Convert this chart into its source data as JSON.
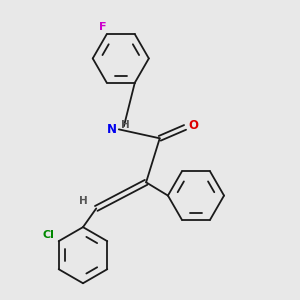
{
  "background_color": "#e8e8e8",
  "bond_color": "#1a1a1a",
  "atom_colors": {
    "F": "#cc00cc",
    "N": "#0000ee",
    "O": "#dd0000",
    "Cl": "#008800",
    "H": "#555555",
    "C": "#1a1a1a"
  },
  "figsize": [
    3.0,
    3.0
  ],
  "dpi": 100,
  "lw": 1.3,
  "ring_r": 0.72,
  "inner_ring_r": 0.52,
  "shrink": 0.12
}
